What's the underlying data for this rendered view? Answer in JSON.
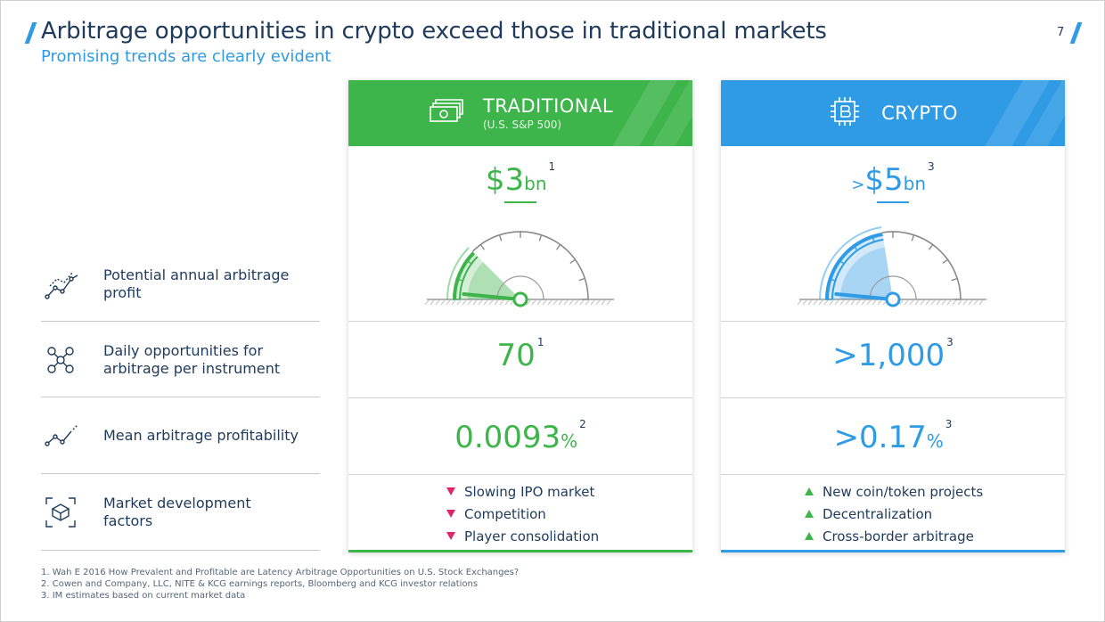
{
  "header": {
    "title": "Arbitrage opportunities in crypto exceed those in traditional markets",
    "subtitle": "Promising trends are clearly evident",
    "page_number": "7"
  },
  "rows": [
    {
      "icon": "trend-line-icon",
      "label": "Potential annual arbitrage profit"
    },
    {
      "icon": "network-nodes-icon",
      "label": "Daily opportunities for arbitrage per instrument"
    },
    {
      "icon": "trend-up-icon",
      "label": "Mean arbitrage profitability"
    },
    {
      "icon": "cube-scan-icon",
      "label": "Market development factors"
    }
  ],
  "traditional": {
    "title": "TRADITIONAL",
    "subtitle": "(U.S. S&P 500)",
    "icon": "cash-stack-icon",
    "color": "#3db54a",
    "profit": {
      "prefix": "",
      "value": "$3",
      "unit": "bn",
      "note": "1"
    },
    "gauge_level": 0.25,
    "daily": {
      "prefix": "",
      "value": "70",
      "unit": "",
      "note": "1"
    },
    "mean": {
      "prefix": "",
      "value": "0.0093",
      "unit": "%",
      "note": "2"
    },
    "factors": [
      "Slowing IPO market",
      "Competition",
      "Player consolidation"
    ]
  },
  "crypto": {
    "title": "CRYPTO",
    "icon": "bitcoin-chip-icon",
    "color": "#2f9be5",
    "profit": {
      "prefix": ">",
      "value": "$5",
      "unit": "bn",
      "note": "3"
    },
    "gauge_level": 0.45,
    "daily": {
      "prefix": "",
      "value": ">1,000",
      "unit": "",
      "note": "3"
    },
    "mean": {
      "prefix": "",
      "value": ">0.17",
      "unit": "%",
      "note": "3"
    },
    "factors": [
      "New coin/token projects",
      "Decentralization",
      "Cross-border arbitrage"
    ]
  },
  "footnotes": [
    "1.   Wah E 2016 How Prevalent and Profitable are Latency Arbitrage Opportunities on U.S. Stock Exchanges?",
    "2.   Cowen and Company, LLC, NITE & KCG earnings reports, Bloomberg and KCG investor relations",
    "3.   IM estimates based on current market data"
  ]
}
